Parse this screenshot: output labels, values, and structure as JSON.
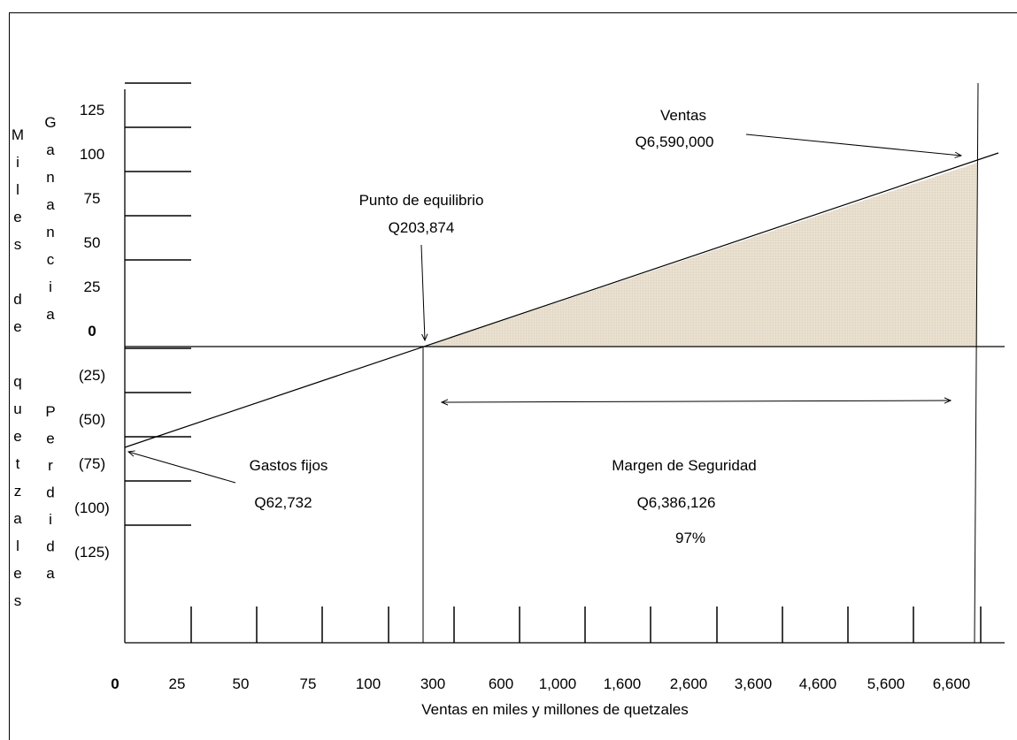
{
  "chart_data": {
    "type": "line",
    "title": "",
    "xlabel": "Ventas en miles y millones de quetzales",
    "ylabel_outer": [
      "M",
      "i",
      "l",
      "e",
      "s",
      "",
      "d",
      "e",
      "",
      "q",
      "u",
      "e",
      "t",
      "z",
      "a",
      "l",
      "e",
      "s"
    ],
    "ylabel_gain": [
      "G",
      "a",
      "n",
      "a",
      "n",
      "c",
      "i",
      "a"
    ],
    "ylabel_loss": [
      "P",
      "e",
      "r",
      "d",
      "i",
      "d",
      "a"
    ],
    "y_ticks": [
      "125",
      "100",
      "75",
      "50",
      "25",
      "0",
      "(25)",
      "(50)",
      "(75)",
      "(100)",
      "(125)"
    ],
    "y_values": [
      125,
      100,
      75,
      50,
      25,
      0,
      -25,
      -50,
      -75,
      -100,
      -125
    ],
    "x_ticks": [
      "0",
      "25",
      "50",
      "75",
      "100",
      "300",
      "600",
      "1,000",
      "1,600",
      "2,600",
      "3,600",
      "4,600",
      "5,600",
      "6,600"
    ],
    "series": [
      {
        "x": [
          0,
          203.874,
          6590
        ],
        "y": [
          -62.732,
          0,
          104
        ]
      }
    ],
    "annotations": {
      "ventas": {
        "label": "Ventas",
        "value": "Q6,590,000"
      },
      "punto_equilibrio": {
        "label": "Punto de equilibrio",
        "value": "Q203,874"
      },
      "gastos_fijos": {
        "label": "Gastos fijos",
        "value": "Q62,732"
      },
      "margen": {
        "label": "Margen de Seguridad",
        "value": "Q6,386,126",
        "percent": "97%"
      }
    },
    "shaded_region": "profit area between break-even and sales",
    "colors": {
      "shade": "#e6dccb",
      "line": "#000000"
    },
    "grid": false
  }
}
